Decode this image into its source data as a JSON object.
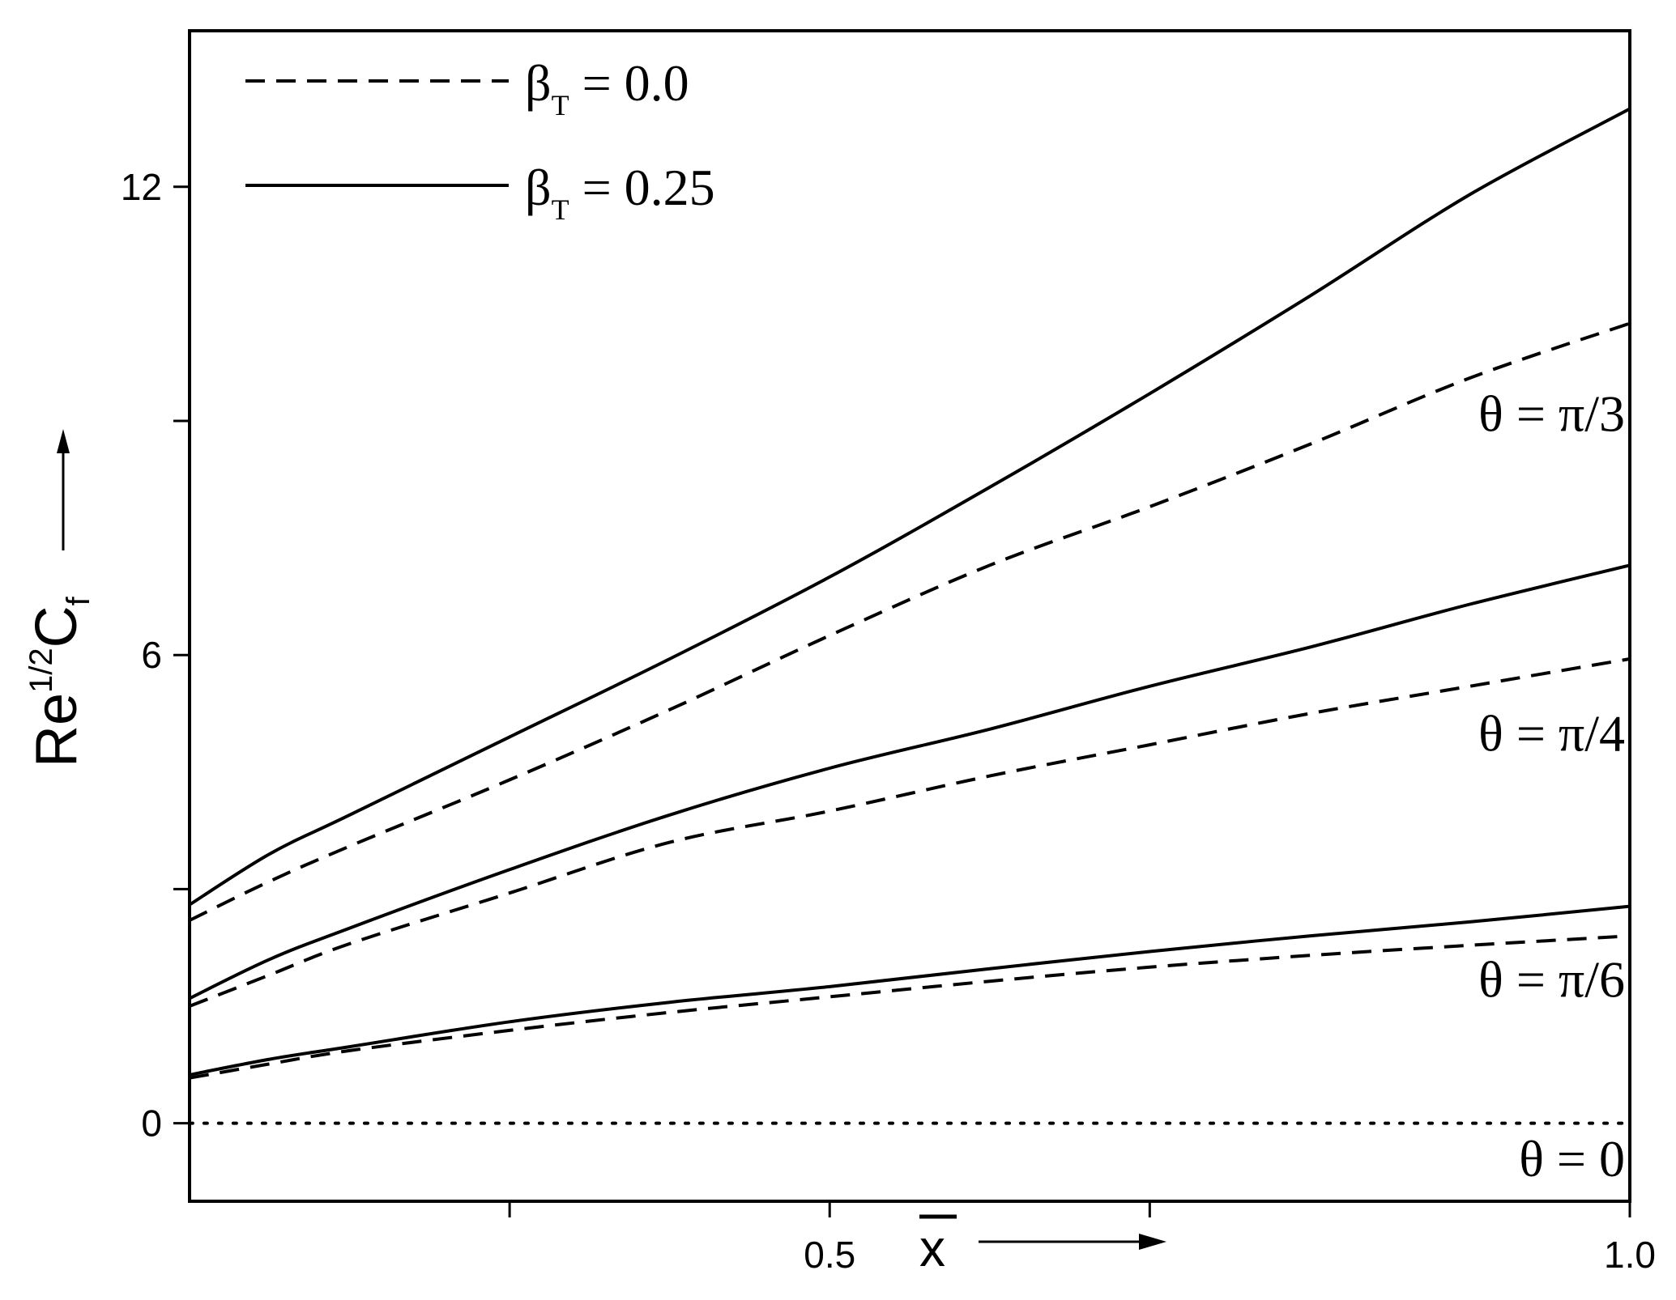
{
  "chart_data": {
    "type": "line",
    "xlabel": "x",
    "ylabel": {
      "base": "Re",
      "superscript": "1/2",
      "symbol": "C",
      "subscript": "f"
    },
    "xlim": [
      0.1,
      1.0
    ],
    "ylim": [
      -1,
      14
    ],
    "x_ticks": [
      {
        "value": 0.3,
        "label": ""
      },
      {
        "value": 0.5,
        "label": "0.5"
      },
      {
        "value": 0.7,
        "label": ""
      },
      {
        "value": 1.0,
        "label": "1.0"
      }
    ],
    "y_ticks": [
      {
        "value": 0,
        "label": "0"
      },
      {
        "value": 3,
        "label": ""
      },
      {
        "value": 6,
        "label": "6"
      },
      {
        "value": 9,
        "label": ""
      },
      {
        "value": 12,
        "label": "12"
      }
    ],
    "legend": {
      "placement": "top-left",
      "entries": [
        {
          "style": "dashed",
          "symbol": "β",
          "subscript": "T",
          "rest": " = 0.0"
        },
        {
          "style": "solid",
          "symbol": "β",
          "subscript": "T",
          "rest": " = 0.25"
        }
      ]
    },
    "annotations": [
      {
        "text": "θ = π/3",
        "x": 1.0,
        "y": 9.1
      },
      {
        "text": "θ = π/4",
        "x": 1.0,
        "y": 5.0
      },
      {
        "text": "θ = π/6",
        "x": 1.0,
        "y": 1.85
      },
      {
        "text": "θ = 0",
        "x": 1.0,
        "y": -0.45
      }
    ],
    "series": [
      {
        "style": "dashed",
        "x": [
          0.1,
          0.15,
          0.2,
          0.3,
          0.4,
          0.5,
          0.6,
          0.7,
          0.8,
          0.9,
          1.0
        ],
        "values": [
          2.6,
          3.1,
          3.55,
          4.4,
          5.3,
          6.25,
          7.15,
          7.9,
          8.7,
          9.55,
          10.25
        ]
      },
      {
        "style": "solid",
        "x": [
          0.1,
          0.15,
          0.2,
          0.3,
          0.4,
          0.5,
          0.6,
          0.7,
          0.8,
          0.9,
          1.0
        ],
        "values": [
          2.8,
          3.45,
          3.95,
          4.95,
          5.95,
          7.0,
          8.15,
          9.35,
          10.6,
          11.9,
          13.0
        ]
      },
      {
        "style": "dashed",
        "x": [
          0.1,
          0.15,
          0.2,
          0.3,
          0.4,
          0.5,
          0.6,
          0.7,
          0.8,
          0.9,
          1.0
        ],
        "values": [
          1.5,
          1.9,
          2.3,
          2.95,
          3.6,
          4.0,
          4.45,
          4.85,
          5.25,
          5.6,
          5.95
        ]
      },
      {
        "style": "solid",
        "x": [
          0.1,
          0.15,
          0.2,
          0.3,
          0.4,
          0.5,
          0.6,
          0.7,
          0.8,
          0.9,
          1.0
        ],
        "values": [
          1.6,
          2.1,
          2.5,
          3.25,
          3.95,
          4.55,
          5.05,
          5.6,
          6.1,
          6.65,
          7.15
        ]
      },
      {
        "style": "dashed",
        "x": [
          0.1,
          0.15,
          0.2,
          0.3,
          0.4,
          0.5,
          0.6,
          0.7,
          0.8,
          0.9,
          1.0
        ],
        "values": [
          0.58,
          0.76,
          0.93,
          1.19,
          1.42,
          1.62,
          1.82,
          2.0,
          2.15,
          2.28,
          2.4
        ]
      },
      {
        "style": "solid",
        "x": [
          0.1,
          0.15,
          0.2,
          0.3,
          0.4,
          0.5,
          0.6,
          0.7,
          0.8,
          0.9,
          1.0
        ],
        "values": [
          0.62,
          0.82,
          0.98,
          1.3,
          1.55,
          1.75,
          1.98,
          2.2,
          2.4,
          2.58,
          2.78
        ]
      },
      {
        "style": "dotted",
        "x": [
          0.1,
          1.0
        ],
        "values": [
          0,
          0
        ]
      }
    ]
  }
}
